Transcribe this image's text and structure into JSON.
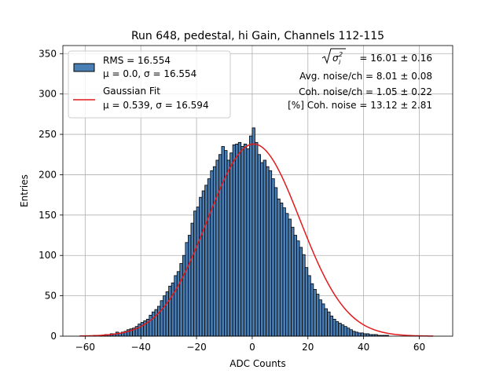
{
  "chart_data": {
    "type": "bar",
    "title": "Run 648, pedestal, hi Gain, Channels 112-115",
    "xlabel": "ADC Counts",
    "ylabel": "Entries",
    "xlim": [
      -68,
      72
    ],
    "ylim": [
      0,
      360
    ],
    "xticks": [
      -60,
      -40,
      -20,
      0,
      20,
      40,
      60
    ],
    "yticks": [
      0,
      50,
      100,
      150,
      200,
      250,
      300,
      350
    ],
    "grid": true,
    "legend_placement": "top-left",
    "bin_width": 1,
    "bin_start": -63,
    "values": [
      0,
      0,
      0,
      0,
      0,
      0,
      1,
      0,
      1,
      1,
      2,
      2,
      3,
      3,
      5,
      4,
      5,
      6,
      8,
      9,
      10,
      12,
      15,
      17,
      19,
      21,
      26,
      30,
      33,
      37,
      44,
      50,
      55,
      62,
      66,
      75,
      80,
      90,
      100,
      116,
      125,
      140,
      155,
      160,
      172,
      180,
      187,
      195,
      205,
      210,
      218,
      225,
      235,
      230,
      218,
      227,
      237,
      238,
      240,
      235,
      238,
      232,
      248,
      258,
      240,
      225,
      215,
      218,
      210,
      205,
      195,
      184,
      170,
      165,
      159,
      152,
      145,
      135,
      125,
      118,
      110,
      101,
      85,
      75,
      65,
      58,
      52,
      45,
      40,
      34,
      30,
      25,
      21,
      18,
      16,
      14,
      12,
      10,
      8,
      6,
      5,
      4,
      4,
      3,
      3,
      2,
      2,
      2,
      1,
      1,
      1,
      1,
      0,
      0,
      0,
      0,
      0,
      0,
      0,
      0,
      0,
      0,
      0,
      0,
      0,
      0
    ],
    "fit": {
      "amplitude": 238,
      "mean": 0.539,
      "sigma": 16.594,
      "x_range": [
        -62,
        65
      ]
    },
    "colors": {
      "bars": "#4a7fb5",
      "bar_edge": "#000000",
      "fit": "#e41a1c",
      "grid": "#b0b0b0"
    },
    "legend": [
      {
        "label_line1": "RMS = 16.554",
        "label_line2": "μ = 0.0, σ = 16.554",
        "kind": "patch"
      },
      {
        "label_line1": "Gaussian Fit",
        "label_line2": "μ = 0.539, σ = 16.594",
        "kind": "line"
      }
    ],
    "annotations": {
      "sigma_line": "= 16.01 ± 0.16",
      "avg_noise": "Avg. noise/ch = 8.01 ± 0.08",
      "coh_noise": "Coh. noise/ch = 1.05 ± 0.22",
      "pct_coh_noise": "[%] Coh. noise = 13.12 ± 2.81"
    }
  }
}
